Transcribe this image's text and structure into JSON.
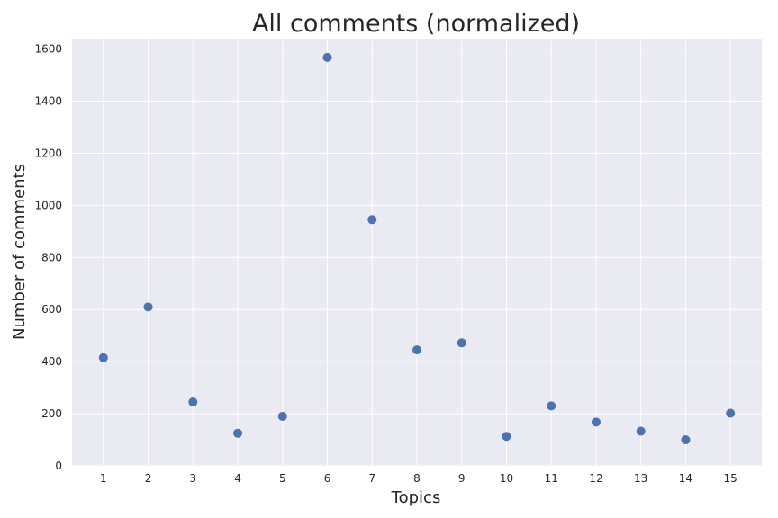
{
  "chart_data": {
    "type": "scatter",
    "title": "All comments (normalized)",
    "xlabel": "Topics",
    "ylabel": "Number of comments",
    "x": [
      1,
      2,
      3,
      4,
      5,
      6,
      7,
      8,
      9,
      10,
      11,
      12,
      13,
      14,
      15
    ],
    "y": [
      415,
      610,
      245,
      125,
      190,
      1568,
      945,
      445,
      472,
      113,
      230,
      168,
      133,
      100,
      202
    ],
    "xticks": [
      "1",
      "2",
      "3",
      "4",
      "5",
      "6",
      "7",
      "8",
      "9",
      "10",
      "11",
      "12",
      "13",
      "14",
      "15"
    ],
    "yticks": [
      "0",
      "200",
      "400",
      "600",
      "800",
      "1000",
      "1200",
      "1400",
      "1600"
    ],
    "xlim": [
      0.3,
      15.7
    ],
    "ylim": [
      0,
      1640
    ],
    "grid": true,
    "colors": {
      "background": "#eaeaf2",
      "grid": "#ffffff",
      "point": "#4c72b0"
    }
  }
}
